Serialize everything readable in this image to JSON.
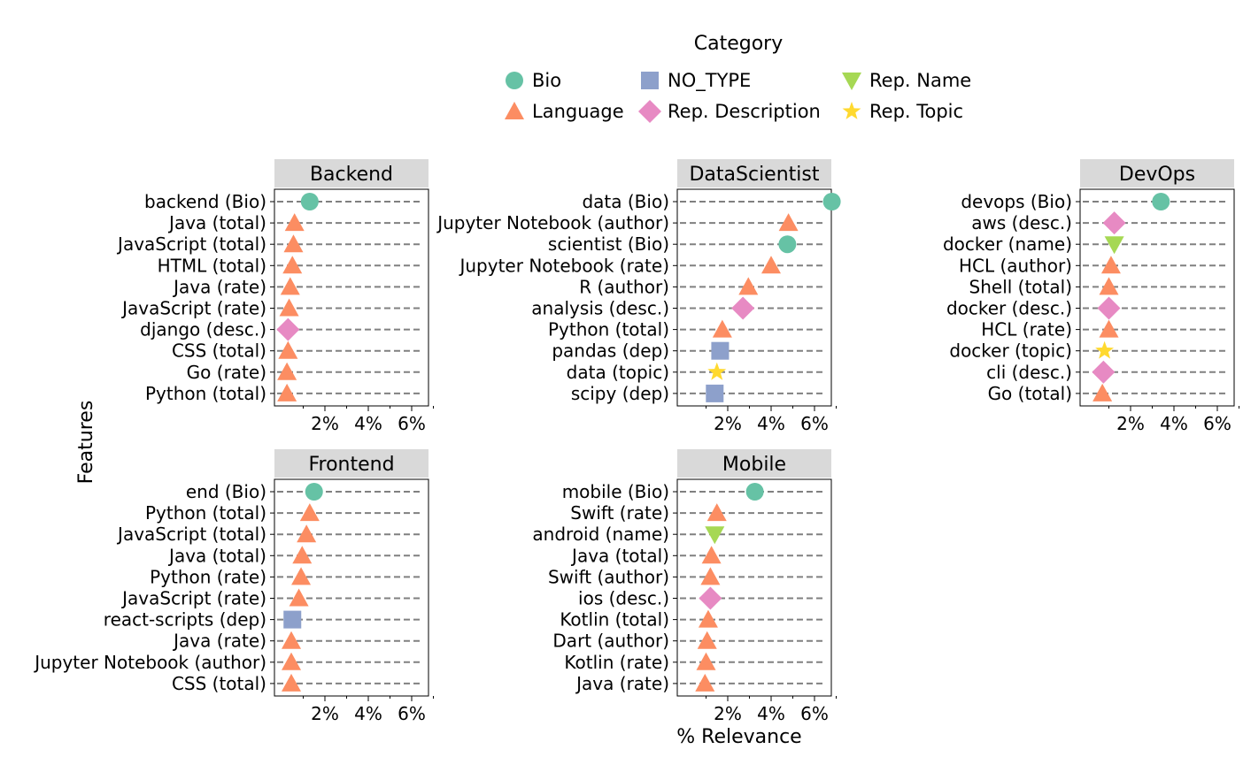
{
  "chart_data": {
    "type": "scatter",
    "xlabel": "% Relevance",
    "ylabel": "Features",
    "xlim": [
      0,
      7.3
    ],
    "x_ticks": [
      2,
      4,
      6
    ],
    "x_tick_labels": [
      "2%",
      "4%",
      "6%"
    ],
    "legend": {
      "title": "Category",
      "placement": "top-center",
      "entries": [
        {
          "key": "Bio",
          "label": "Bio",
          "marker": "circle",
          "color": "#66c2a5"
        },
        {
          "key": "NO_TYPE",
          "label": "NO_TYPE",
          "marker": "square",
          "color": "#8da0cb"
        },
        {
          "key": "RepName",
          "label": "Rep. Name",
          "marker": "triangle-down",
          "color": "#a6d854"
        },
        {
          "key": "Language",
          "label": "Language",
          "marker": "triangle-up",
          "color": "#fc8d62"
        },
        {
          "key": "RepDesc",
          "label": "Rep. Description",
          "marker": "diamond",
          "color": "#e78ac3"
        },
        {
          "key": "RepTopic",
          "label": "Rep. Topic",
          "marker": "star",
          "color": "#ffd92f"
        }
      ]
    },
    "panels": [
      {
        "title": "Backend",
        "points": [
          {
            "label": "backend (Bio)",
            "value": 1.3,
            "category": "Bio"
          },
          {
            "label": "Java (total)",
            "value": 0.6,
            "category": "Language"
          },
          {
            "label": "JavaScript (total)",
            "value": 0.55,
            "category": "Language"
          },
          {
            "label": "HTML (total)",
            "value": 0.5,
            "category": "Language"
          },
          {
            "label": "Java (rate)",
            "value": 0.4,
            "category": "Language"
          },
          {
            "label": "JavaScript (rate)",
            "value": 0.35,
            "category": "Language"
          },
          {
            "label": "django (desc.)",
            "value": 0.3,
            "category": "RepDesc"
          },
          {
            "label": "CSS (total)",
            "value": 0.3,
            "category": "Language"
          },
          {
            "label": "Go (rate)",
            "value": 0.25,
            "category": "Language"
          },
          {
            "label": "Python (total)",
            "value": 0.25,
            "category": "Language"
          }
        ]
      },
      {
        "title": "DataScientist",
        "points": [
          {
            "label": "data (Bio)",
            "value": 6.8,
            "category": "Bio"
          },
          {
            "label": "Jupyter Notebook (author)",
            "value": 4.8,
            "category": "Language"
          },
          {
            "label": "scientist (Bio)",
            "value": 4.75,
            "category": "Bio"
          },
          {
            "label": "Jupyter Notebook (rate)",
            "value": 4.0,
            "category": "Language"
          },
          {
            "label": "R (author)",
            "value": 2.95,
            "category": "Language"
          },
          {
            "label": "analysis (desc.)",
            "value": 2.7,
            "category": "RepDesc"
          },
          {
            "label": "Python (total)",
            "value": 1.75,
            "category": "Language"
          },
          {
            "label": "pandas (dep)",
            "value": 1.65,
            "category": "NO_TYPE"
          },
          {
            "label": "data (topic)",
            "value": 1.5,
            "category": "RepTopic"
          },
          {
            "label": "scipy (dep)",
            "value": 1.4,
            "category": "NO_TYPE"
          }
        ]
      },
      {
        "title": "DevOps",
        "points": [
          {
            "label": "devops (Bio)",
            "value": 3.4,
            "category": "Bio"
          },
          {
            "label": "aws (desc.)",
            "value": 1.25,
            "category": "RepDesc"
          },
          {
            "label": "docker (name)",
            "value": 1.25,
            "category": "RepName"
          },
          {
            "label": "HCL (author)",
            "value": 1.1,
            "category": "Language"
          },
          {
            "label": "Shell (total)",
            "value": 1.0,
            "category": "Language"
          },
          {
            "label": "docker (desc.)",
            "value": 1.0,
            "category": "RepDesc"
          },
          {
            "label": "HCL (rate)",
            "value": 1.0,
            "category": "Language"
          },
          {
            "label": "docker (topic)",
            "value": 0.8,
            "category": "RepTopic"
          },
          {
            "label": "cli (desc.)",
            "value": 0.75,
            "category": "RepDesc"
          },
          {
            "label": "Go (total)",
            "value": 0.7,
            "category": "Language"
          }
        ]
      },
      {
        "title": "Frontend",
        "points": [
          {
            "label": "end (Bio)",
            "value": 1.5,
            "category": "Bio"
          },
          {
            "label": "Python (total)",
            "value": 1.3,
            "category": "Language"
          },
          {
            "label": "JavaScript (total)",
            "value": 1.15,
            "category": "Language"
          },
          {
            "label": "Java (total)",
            "value": 0.95,
            "category": "Language"
          },
          {
            "label": "Python (rate)",
            "value": 0.9,
            "category": "Language"
          },
          {
            "label": "JavaScript (rate)",
            "value": 0.8,
            "category": "Language"
          },
          {
            "label": "react-scripts (dep)",
            "value": 0.5,
            "category": "NO_TYPE"
          },
          {
            "label": "Java (rate)",
            "value": 0.45,
            "category": "Language"
          },
          {
            "label": "Jupyter Notebook (author)",
            "value": 0.45,
            "category": "Language"
          },
          {
            "label": "CSS (total)",
            "value": 0.45,
            "category": "Language"
          }
        ]
      },
      {
        "title": "Mobile",
        "points": [
          {
            "label": "mobile (Bio)",
            "value": 3.25,
            "category": "Bio"
          },
          {
            "label": "Swift (rate)",
            "value": 1.5,
            "category": "Language"
          },
          {
            "label": "android (name)",
            "value": 1.4,
            "category": "RepName"
          },
          {
            "label": "Java (total)",
            "value": 1.25,
            "category": "Language"
          },
          {
            "label": "Swift (author)",
            "value": 1.2,
            "category": "Language"
          },
          {
            "label": "ios (desc.)",
            "value": 1.2,
            "category": "RepDesc"
          },
          {
            "label": "Kotlin (total)",
            "value": 1.1,
            "category": "Language"
          },
          {
            "label": "Dart (author)",
            "value": 1.05,
            "category": "Language"
          },
          {
            "label": "Kotlin (rate)",
            "value": 1.0,
            "category": "Language"
          },
          {
            "label": "Java (rate)",
            "value": 0.95,
            "category": "Language"
          }
        ]
      }
    ]
  }
}
